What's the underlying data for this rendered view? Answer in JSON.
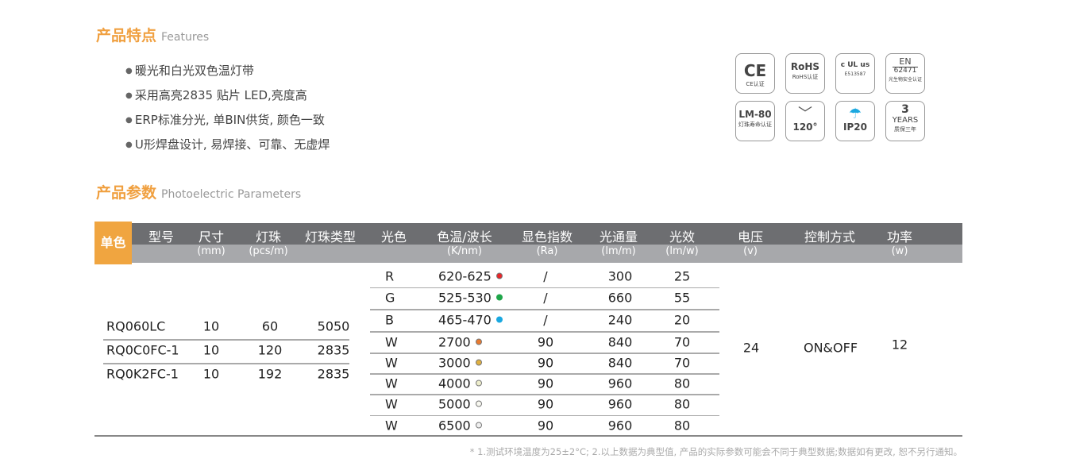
{
  "features": {
    "title": "产品特点",
    "subtitle": "Features",
    "items": [
      "暖光和白光双色温灯带",
      "采用高亮2835 贴片 LED,亮度高",
      "ERP标准分光, 单BIN供货, 颜色一致",
      "U形焊盘设计, 易焊接、可靠、无虚焊"
    ]
  },
  "badges": [
    {
      "main": "CE",
      "sub": "CE认证"
    },
    {
      "main": "RoHS",
      "sub": "RoHS认证"
    },
    {
      "main": "c UL us",
      "sub": "E513587"
    },
    {
      "main": "EN",
      "mid": "62471",
      "sub": "光生物安全认证"
    },
    {
      "main": "LM-80",
      "sub": "灯珠寿命认证"
    },
    {
      "main": "120°",
      "icon": "beam-angle-icon"
    },
    {
      "main": "IP20",
      "icon": "umbrella-rain-icon"
    },
    {
      "main": "3",
      "mid": "YEARS",
      "sub": "质保三年"
    }
  ],
  "params": {
    "title": "产品参数",
    "subtitle": "Photoelectric Parameters"
  },
  "table": {
    "group_label": "单色",
    "headers": [
      {
        "label": "型号",
        "unit": ""
      },
      {
        "label": "尺寸",
        "unit": "(mm)"
      },
      {
        "label": "灯珠",
        "unit": "(pcs/m)"
      },
      {
        "label": "灯珠类型",
        "unit": ""
      },
      {
        "label": "光色",
        "unit": ""
      },
      {
        "label": "色温/波长",
        "unit": "(K/nm)"
      },
      {
        "label": "显色指数",
        "unit": "(Ra)"
      },
      {
        "label": "光通量",
        "unit": "(lm/m)"
      },
      {
        "label": "光效",
        "unit": "(lm/w)"
      },
      {
        "label": "电压",
        "unit": "(v)"
      },
      {
        "label": "控制方式",
        "unit": ""
      },
      {
        "label": "功率",
        "unit": "(w)"
      }
    ],
    "models": [
      {
        "model": "RQ060LC",
        "size": "10",
        "leds": "60",
        "type": "5050"
      },
      {
        "model": "RQ0C0FC-1",
        "size": "10",
        "leds": "120",
        "type": "2835"
      },
      {
        "model": "RQ0K2FC-1",
        "size": "10",
        "leds": "192",
        "type": "2835"
      }
    ],
    "colors": [
      {
        "color": "R",
        "cct": "620-625",
        "dot": "#e8262a",
        "ra": "/",
        "flux": "300",
        "eff": "25"
      },
      {
        "color": "G",
        "cct": "525-530",
        "dot": "#1fa64a",
        "ra": "/",
        "flux": "660",
        "eff": "55"
      },
      {
        "color": "B",
        "cct": "465-470",
        "dot": "#1aa8e0",
        "ra": "/",
        "flux": "240",
        "eff": "20"
      },
      {
        "color": "W",
        "cct": "2700",
        "dot": "#e87a30",
        "ra": "90",
        "flux": "840",
        "eff": "70"
      },
      {
        "color": "W",
        "cct": "3000",
        "dot": "#e0b040",
        "ra": "90",
        "flux": "840",
        "eff": "70"
      },
      {
        "color": "W",
        "cct": "4000",
        "dot": "#eeeecc",
        "ra": "90",
        "flux": "960",
        "eff": "80"
      },
      {
        "color": "W",
        "cct": "5000",
        "dot": "#f8f8f0",
        "ra": "90",
        "flux": "960",
        "eff": "80"
      },
      {
        "color": "W",
        "cct": "6500",
        "dot": "#f0f0f0",
        "ra": "90",
        "flux": "960",
        "eff": "80"
      }
    ],
    "voltage": "24",
    "control": "ON&OFF",
    "power": "12"
  },
  "footnote": "* 1.测试环境温度为25±2°C;  2.以上数据为典型值, 产品的实际参数可能会不同于典型数据;数据如有更改, 恕不另行通知。"
}
